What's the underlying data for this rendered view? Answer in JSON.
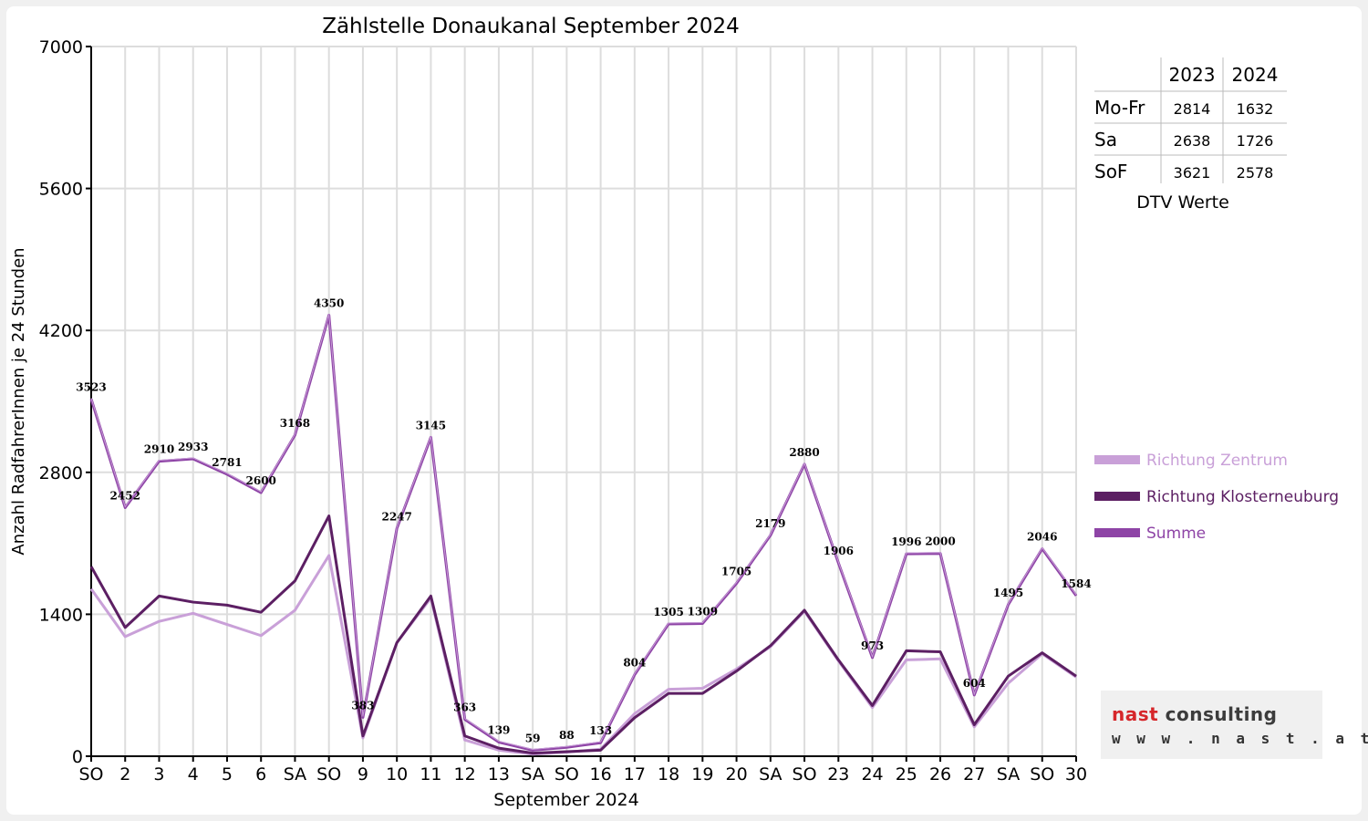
{
  "chart_data": {
    "type": "line",
    "title": "Zählstelle Donaukanal September 2024",
    "xlabel": "September 2024",
    "ylabel": "Anzahl RadfahrerInnen je 24 Stunden",
    "ylim": [
      0,
      7000
    ],
    "yticks": [
      "0",
      "1400",
      "2800",
      "4200",
      "5600",
      "7000"
    ],
    "grid": true,
    "legend_position": "right",
    "categories": [
      "SO",
      "2",
      "3",
      "4",
      "5",
      "6",
      "SA",
      "SO",
      "9",
      "10",
      "11",
      "12",
      "13",
      "SA",
      "SO",
      "16",
      "17",
      "18",
      "19",
      "20",
      "SA",
      "SO",
      "23",
      "24",
      "25",
      "26",
      "27",
      "SA",
      "SO",
      "30"
    ],
    "weekend_color": "#ff0000",
    "series": [
      {
        "name": "Richtung Zentrum",
        "color": "#c9a0d8",
        "values": [
          1650,
          1180,
          1330,
          1410,
          1300,
          1190,
          1440,
          1980,
          180,
          1120,
          1560,
          160,
          60,
          20,
          40,
          70,
          420,
          660,
          670,
          860,
          1080,
          1430,
          940,
          480,
          950,
          960,
          290,
          720,
          1010,
          780
        ]
      },
      {
        "name": "Richtung Klosterneuburg",
        "color": "#5c1f63",
        "values": [
          1870,
          1270,
          1580,
          1520,
          1490,
          1420,
          1730,
          2370,
          200,
          1120,
          1580,
          200,
          80,
          30,
          45,
          60,
          380,
          620,
          620,
          840,
          1090,
          1440,
          950,
          500,
          1040,
          1030,
          310,
          790,
          1020,
          790
        ]
      },
      {
        "name": "Summe",
        "color": "#8e44a6",
        "values": [
          3523,
          2452,
          2910,
          2933,
          2781,
          2600,
          3168,
          4350,
          383,
          2247,
          3145,
          363,
          139,
          59,
          88,
          133,
          804,
          1305,
          1309,
          1705,
          2179,
          2880,
          1906,
          973,
          1996,
          2000,
          604,
          1495,
          2046,
          1584
        ],
        "labels": [
          "3523",
          "2452",
          "2910",
          "2933",
          "2781",
          "2600",
          "3168",
          "4350",
          "383",
          "2247",
          "3145",
          "363",
          "139",
          "59",
          "88",
          "133",
          "804",
          "1305",
          "1309",
          "1705",
          "2179",
          "2880",
          "1906",
          "973",
          "1996",
          "2000",
          "604",
          "1495",
          "2046",
          "1584"
        ]
      }
    ]
  },
  "dtv_table": {
    "caption": "DTV Werte",
    "columns": [
      "2023",
      "2024"
    ],
    "rows": [
      {
        "label": "Mo-Fr",
        "values": [
          "2814",
          "1632"
        ]
      },
      {
        "label": "Sa",
        "values": [
          "2638",
          "1726"
        ]
      },
      {
        "label": "SoF",
        "values": [
          "3621",
          "2578"
        ]
      }
    ]
  },
  "logo": {
    "name_part1": "nast",
    "name_part2": "consulting",
    "url": "w w w . n a s t . a t"
  }
}
